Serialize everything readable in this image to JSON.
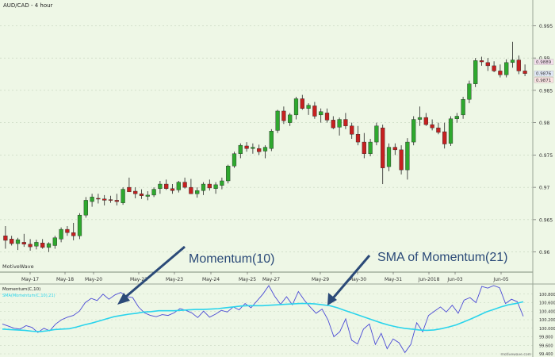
{
  "title": "AUD/CAD - 4 hour",
  "watermark": "MotiveWave",
  "footer_credit": "motivewave.com",
  "colors": {
    "background": "#eef7e6",
    "bull": "#2ea82e",
    "bear": "#c62020",
    "momentum": "#4a4ad6",
    "sma": "#2ad4ec",
    "annotation": "#2b4a78",
    "grid": "#b8c8b0"
  },
  "annotations": [
    {
      "text": "Momentum(10)"
    },
    {
      "text": "SMA of Momentum(21)"
    }
  ],
  "chart_data": [
    {
      "type": "candlestick",
      "title": "AUD/CAD - 4 hour",
      "x_labels": [
        "May-17",
        "May-18",
        "May-20",
        "May-22",
        "May-23",
        "May-24",
        "May-25",
        "May-27",
        "May-29",
        "May-30",
        "May-31",
        "Jun-2018",
        "Jun-03",
        "Jun-05"
      ],
      "y_ticks": [
        "0.96",
        "0.965",
        "0.97",
        "0.975",
        "0.98",
        "0.985",
        "0.99",
        "0.995"
      ],
      "ylim": [
        0.9575,
        0.9975
      ],
      "price_labels": [
        "0.9889",
        "0.9876",
        "0.9871"
      ],
      "grid": true,
      "candles": [
        {
          "o": 0.9625,
          "h": 0.964,
          "l": 0.9605,
          "c": 0.9618
        },
        {
          "o": 0.962,
          "h": 0.9625,
          "l": 0.961,
          "c": 0.9613
        },
        {
          "o": 0.9613,
          "h": 0.9622,
          "l": 0.9603,
          "c": 0.9619
        },
        {
          "o": 0.9615,
          "h": 0.9628,
          "l": 0.9608,
          "c": 0.9612
        },
        {
          "o": 0.9612,
          "h": 0.962,
          "l": 0.9602,
          "c": 0.9608
        },
        {
          "o": 0.9609,
          "h": 0.9619,
          "l": 0.9604,
          "c": 0.9615
        },
        {
          "o": 0.9614,
          "h": 0.962,
          "l": 0.9605,
          "c": 0.9607
        },
        {
          "o": 0.9607,
          "h": 0.9615,
          "l": 0.96,
          "c": 0.9613
        },
        {
          "o": 0.961,
          "h": 0.9625,
          "l": 0.9605,
          "c": 0.9622
        },
        {
          "o": 0.962,
          "h": 0.9638,
          "l": 0.9615,
          "c": 0.9635
        },
        {
          "o": 0.9635,
          "h": 0.964,
          "l": 0.9625,
          "c": 0.963
        },
        {
          "o": 0.963,
          "h": 0.9645,
          "l": 0.9618,
          "c": 0.9625
        },
        {
          "o": 0.9625,
          "h": 0.966,
          "l": 0.962,
          "c": 0.9657
        },
        {
          "o": 0.9657,
          "h": 0.9685,
          "l": 0.9653,
          "c": 0.968
        },
        {
          "o": 0.9678,
          "h": 0.969,
          "l": 0.967,
          "c": 0.9685
        },
        {
          "o": 0.9683,
          "h": 0.969,
          "l": 0.9675,
          "c": 0.9682
        },
        {
          "o": 0.9682,
          "h": 0.9688,
          "l": 0.9672,
          "c": 0.968
        },
        {
          "o": 0.9681,
          "h": 0.9687,
          "l": 0.9676,
          "c": 0.968
        },
        {
          "o": 0.968,
          "h": 0.969,
          "l": 0.9672,
          "c": 0.9678
        },
        {
          "o": 0.9676,
          "h": 0.97,
          "l": 0.9673,
          "c": 0.9697
        },
        {
          "o": 0.97,
          "h": 0.9715,
          "l": 0.9695,
          "c": 0.9693
        },
        {
          "o": 0.9694,
          "h": 0.97,
          "l": 0.9683,
          "c": 0.969
        },
        {
          "o": 0.969,
          "h": 0.9697,
          "l": 0.9682,
          "c": 0.9687
        },
        {
          "o": 0.9686,
          "h": 0.9694,
          "l": 0.968,
          "c": 0.9688
        },
        {
          "o": 0.9688,
          "h": 0.97,
          "l": 0.9685,
          "c": 0.9697
        },
        {
          "o": 0.9698,
          "h": 0.971,
          "l": 0.969,
          "c": 0.9705
        },
        {
          "o": 0.9705,
          "h": 0.9712,
          "l": 0.9696,
          "c": 0.9698
        },
        {
          "o": 0.9698,
          "h": 0.9705,
          "l": 0.969,
          "c": 0.9695
        },
        {
          "o": 0.9696,
          "h": 0.971,
          "l": 0.9692,
          "c": 0.9708
        },
        {
          "o": 0.9708,
          "h": 0.9715,
          "l": 0.9698,
          "c": 0.97
        },
        {
          "o": 0.97,
          "h": 0.9713,
          "l": 0.969,
          "c": 0.969
        },
        {
          "o": 0.969,
          "h": 0.97,
          "l": 0.9684,
          "c": 0.9695
        },
        {
          "o": 0.9695,
          "h": 0.9708,
          "l": 0.9688,
          "c": 0.9705
        },
        {
          "o": 0.9705,
          "h": 0.9712,
          "l": 0.9695,
          "c": 0.9699
        },
        {
          "o": 0.9698,
          "h": 0.9708,
          "l": 0.969,
          "c": 0.9704
        },
        {
          "o": 0.9703,
          "h": 0.9715,
          "l": 0.9697,
          "c": 0.971
        },
        {
          "o": 0.971,
          "h": 0.9735,
          "l": 0.9706,
          "c": 0.9733
        },
        {
          "o": 0.9733,
          "h": 0.9755,
          "l": 0.973,
          "c": 0.9752
        },
        {
          "o": 0.9752,
          "h": 0.9768,
          "l": 0.9745,
          "c": 0.9765
        },
        {
          "o": 0.9764,
          "h": 0.977,
          "l": 0.9755,
          "c": 0.976
        },
        {
          "o": 0.976,
          "h": 0.9768,
          "l": 0.9752,
          "c": 0.9762
        },
        {
          "o": 0.976,
          "h": 0.9766,
          "l": 0.975,
          "c": 0.9755
        },
        {
          "o": 0.9756,
          "h": 0.9765,
          "l": 0.9745,
          "c": 0.9762
        },
        {
          "o": 0.976,
          "h": 0.979,
          "l": 0.9756,
          "c": 0.9787
        },
        {
          "o": 0.9788,
          "h": 0.982,
          "l": 0.9784,
          "c": 0.9818
        },
        {
          "o": 0.9818,
          "h": 0.9825,
          "l": 0.9798,
          "c": 0.9803
        },
        {
          "o": 0.98,
          "h": 0.9815,
          "l": 0.9795,
          "c": 0.9812
        },
        {
          "o": 0.9812,
          "h": 0.984,
          "l": 0.9805,
          "c": 0.9837
        },
        {
          "o": 0.9837,
          "h": 0.9843,
          "l": 0.982,
          "c": 0.9822
        },
        {
          "o": 0.9822,
          "h": 0.983,
          "l": 0.9812,
          "c": 0.9827
        },
        {
          "o": 0.9826,
          "h": 0.9832,
          "l": 0.9806,
          "c": 0.981
        },
        {
          "o": 0.9812,
          "h": 0.9822,
          "l": 0.98,
          "c": 0.9817
        },
        {
          "o": 0.9815,
          "h": 0.9822,
          "l": 0.98,
          "c": 0.9804
        },
        {
          "o": 0.9804,
          "h": 0.981,
          "l": 0.979,
          "c": 0.9792
        },
        {
          "o": 0.9793,
          "h": 0.9808,
          "l": 0.978,
          "c": 0.9805
        },
        {
          "o": 0.9805,
          "h": 0.9815,
          "l": 0.979,
          "c": 0.9795
        },
        {
          "o": 0.9795,
          "h": 0.98,
          "l": 0.9775,
          "c": 0.9782
        },
        {
          "o": 0.9782,
          "h": 0.9795,
          "l": 0.9765,
          "c": 0.977
        },
        {
          "o": 0.977,
          "h": 0.9784,
          "l": 0.9745,
          "c": 0.9752
        },
        {
          "o": 0.9752,
          "h": 0.9775,
          "l": 0.9748,
          "c": 0.977
        },
        {
          "o": 0.977,
          "h": 0.98,
          "l": 0.9765,
          "c": 0.9795
        },
        {
          "o": 0.9792,
          "h": 0.9797,
          "l": 0.9705,
          "c": 0.973
        },
        {
          "o": 0.9732,
          "h": 0.9768,
          "l": 0.9725,
          "c": 0.9762
        },
        {
          "o": 0.9762,
          "h": 0.9768,
          "l": 0.975,
          "c": 0.9758
        },
        {
          "o": 0.9758,
          "h": 0.9765,
          "l": 0.972,
          "c": 0.9727
        },
        {
          "o": 0.9727,
          "h": 0.9776,
          "l": 0.9712,
          "c": 0.977
        },
        {
          "o": 0.977,
          "h": 0.981,
          "l": 0.9765,
          "c": 0.9805
        },
        {
          "o": 0.9805,
          "h": 0.9825,
          "l": 0.9795,
          "c": 0.9808
        },
        {
          "o": 0.9808,
          "h": 0.9815,
          "l": 0.9795,
          "c": 0.9797
        },
        {
          "o": 0.9797,
          "h": 0.9805,
          "l": 0.9788,
          "c": 0.9792
        },
        {
          "o": 0.9792,
          "h": 0.98,
          "l": 0.9782,
          "c": 0.9785
        },
        {
          "o": 0.9786,
          "h": 0.98,
          "l": 0.976,
          "c": 0.9767
        },
        {
          "o": 0.9768,
          "h": 0.981,
          "l": 0.9764,
          "c": 0.9806
        },
        {
          "o": 0.9806,
          "h": 0.9815,
          "l": 0.98,
          "c": 0.981
        },
        {
          "o": 0.9812,
          "h": 0.984,
          "l": 0.9806,
          "c": 0.9836
        },
        {
          "o": 0.9836,
          "h": 0.9865,
          "l": 0.983,
          "c": 0.986
        },
        {
          "o": 0.986,
          "h": 0.99,
          "l": 0.9855,
          "c": 0.9896
        },
        {
          "o": 0.9896,
          "h": 0.9902,
          "l": 0.9888,
          "c": 0.9894
        },
        {
          "o": 0.9893,
          "h": 0.99,
          "l": 0.988,
          "c": 0.9888
        },
        {
          "o": 0.9888,
          "h": 0.9895,
          "l": 0.9878,
          "c": 0.988
        },
        {
          "o": 0.988,
          "h": 0.989,
          "l": 0.987,
          "c": 0.9874
        },
        {
          "o": 0.9874,
          "h": 0.9898,
          "l": 0.987,
          "c": 0.9893
        },
        {
          "o": 0.9893,
          "h": 0.9925,
          "l": 0.9885,
          "c": 0.9897
        },
        {
          "o": 0.9897,
          "h": 0.9904,
          "l": 0.9875,
          "c": 0.988
        },
        {
          "o": 0.988,
          "h": 0.989,
          "l": 0.9872,
          "c": 0.9876
        }
      ]
    },
    {
      "type": "line",
      "title": "Momentum(C,10)",
      "legend": "SMA(Momentum(C,10),21)",
      "y_ticks": [
        "100.800",
        "100.600",
        "100.400",
        "100.200",
        "100.000",
        "99.800",
        "99.600",
        "99.400"
      ],
      "ylim": [
        99.4,
        101.0
      ],
      "series": [
        {
          "name": "Momentum(C,10)",
          "values": [
            100.1,
            100.05,
            100.0,
            99.98,
            100.06,
            100.02,
            99.9,
            100.0,
            99.94,
            100.1,
            100.2,
            100.26,
            100.3,
            100.4,
            100.6,
            100.7,
            100.65,
            100.8,
            100.68,
            100.78,
            100.84,
            100.74,
            100.72,
            100.5,
            100.36,
            100.3,
            100.27,
            100.32,
            100.3,
            100.36,
            100.46,
            100.42,
            100.36,
            100.25,
            100.4,
            100.26,
            100.33,
            100.42,
            100.38,
            100.5,
            100.43,
            100.58,
            100.48,
            100.64,
            100.8,
            101.0,
            100.75,
            100.56,
            100.74,
            100.55,
            100.86,
            100.66,
            100.5,
            100.35,
            100.45,
            100.2,
            99.8,
            99.92,
            100.22,
            99.72,
            99.63,
            99.98,
            100.1,
            99.62,
            99.88,
            99.52,
            99.75,
            99.66,
            99.43,
            99.62,
            100.13,
            99.92,
            100.3,
            100.4,
            100.5,
            100.38,
            100.54,
            100.35,
            100.66,
            100.72,
            100.6,
            100.98,
            100.94,
            101.0,
            100.95,
            100.58,
            100.68,
            100.62,
            100.28
          ]
        },
        {
          "name": "SMA(Momentum(C,10),21)",
          "values": [
            99.98,
            99.97,
            99.96,
            99.95,
            99.93,
            99.92,
            99.94,
            99.97,
            99.98,
            99.99,
            100.03,
            100.08,
            100.12,
            100.17,
            100.22,
            100.27,
            100.3,
            100.33,
            100.35,
            100.38,
            100.39,
            100.41,
            100.41,
            100.41,
            100.42,
            100.43,
            100.44,
            100.44,
            100.45,
            100.46,
            100.48,
            100.5,
            100.52,
            100.53,
            100.53,
            100.53,
            100.54,
            100.55,
            100.56,
            100.57,
            100.58,
            100.58,
            100.57,
            100.55,
            100.53,
            100.48,
            100.42,
            100.36,
            100.3,
            100.24,
            100.18,
            100.12,
            100.07,
            100.03,
            100.0,
            99.98,
            99.96,
            99.95,
            99.96,
            99.99,
            100.03,
            100.08,
            100.15,
            100.22,
            100.3,
            100.38,
            100.44,
            100.5,
            100.55,
            100.58,
            100.62
          ]
        }
      ]
    }
  ]
}
